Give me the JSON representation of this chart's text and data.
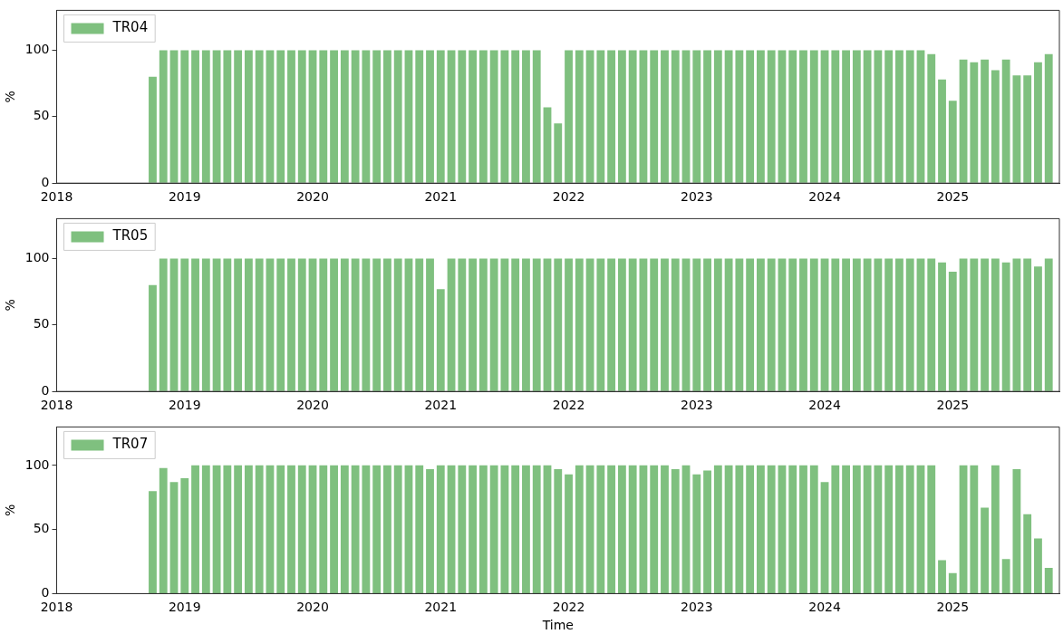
{
  "chart_data": [
    {
      "type": "bar",
      "ylabel": "%",
      "legend": "top left",
      "xlim": [
        "2018-01",
        "2025-11"
      ],
      "xticks": [
        "2018",
        "2019",
        "2020",
        "2021",
        "2022",
        "2023",
        "2024",
        "2025"
      ],
      "ylim": [
        0,
        130
      ],
      "yticks": [
        0,
        50,
        100
      ],
      "x": [
        "2018-10",
        "2018-11",
        "2018-12",
        "2019-01",
        "2019-02",
        "2019-03",
        "2019-04",
        "2019-05",
        "2019-06",
        "2019-07",
        "2019-08",
        "2019-09",
        "2019-10",
        "2019-11",
        "2019-12",
        "2020-01",
        "2020-02",
        "2020-03",
        "2020-04",
        "2020-05",
        "2020-06",
        "2020-07",
        "2020-08",
        "2020-09",
        "2020-10",
        "2020-11",
        "2020-12",
        "2021-01",
        "2021-02",
        "2021-03",
        "2021-04",
        "2021-05",
        "2021-06",
        "2021-07",
        "2021-08",
        "2021-09",
        "2021-10",
        "2021-11",
        "2021-12",
        "2022-01",
        "2022-02",
        "2022-03",
        "2022-04",
        "2022-05",
        "2022-06",
        "2022-07",
        "2022-08",
        "2022-09",
        "2022-10",
        "2022-11",
        "2022-12",
        "2023-01",
        "2023-02",
        "2023-03",
        "2023-04",
        "2023-05",
        "2023-06",
        "2023-07",
        "2023-08",
        "2023-09",
        "2023-10",
        "2023-11",
        "2023-12",
        "2024-01",
        "2024-02",
        "2024-03",
        "2024-04",
        "2024-05",
        "2024-06",
        "2024-07",
        "2024-08",
        "2024-09",
        "2024-10",
        "2024-11",
        "2024-12",
        "2025-01",
        "2025-02",
        "2025-03",
        "2025-04",
        "2025-05",
        "2025-06",
        "2025-07",
        "2025-08",
        "2025-09",
        "2025-10"
      ],
      "series": [
        {
          "name": "TR04",
          "color": "#7fc07f",
          "values": [
            80,
            100,
            100,
            100,
            100,
            100,
            100,
            100,
            100,
            100,
            100,
            100,
            100,
            100,
            100,
            100,
            100,
            100,
            100,
            100,
            100,
            100,
            100,
            100,
            100,
            100,
            100,
            100,
            100,
            100,
            100,
            100,
            100,
            100,
            100,
            100,
            100,
            57,
            45,
            100,
            100,
            100,
            100,
            100,
            100,
            100,
            100,
            100,
            100,
            100,
            100,
            100,
            100,
            100,
            100,
            100,
            100,
            100,
            100,
            100,
            100,
            100,
            100,
            100,
            100,
            100,
            100,
            100,
            100,
            100,
            100,
            100,
            100,
            97,
            78,
            62,
            93,
            91,
            93,
            85,
            93,
            81,
            81,
            91,
            97
          ]
        }
      ]
    },
    {
      "type": "bar",
      "ylabel": "%",
      "legend": "top left",
      "xlim": [
        "2018-01",
        "2025-11"
      ],
      "xticks": [
        "2018",
        "2019",
        "2020",
        "2021",
        "2022",
        "2023",
        "2024",
        "2025"
      ],
      "ylim": [
        0,
        130
      ],
      "yticks": [
        0,
        50,
        100
      ],
      "x": [
        "2018-10",
        "2018-11",
        "2018-12",
        "2019-01",
        "2019-02",
        "2019-03",
        "2019-04",
        "2019-05",
        "2019-06",
        "2019-07",
        "2019-08",
        "2019-09",
        "2019-10",
        "2019-11",
        "2019-12",
        "2020-01",
        "2020-02",
        "2020-03",
        "2020-04",
        "2020-05",
        "2020-06",
        "2020-07",
        "2020-08",
        "2020-09",
        "2020-10",
        "2020-11",
        "2020-12",
        "2021-01",
        "2021-02",
        "2021-03",
        "2021-04",
        "2021-05",
        "2021-06",
        "2021-07",
        "2021-08",
        "2021-09",
        "2021-10",
        "2021-11",
        "2021-12",
        "2022-01",
        "2022-02",
        "2022-03",
        "2022-04",
        "2022-05",
        "2022-06",
        "2022-07",
        "2022-08",
        "2022-09",
        "2022-10",
        "2022-11",
        "2022-12",
        "2023-01",
        "2023-02",
        "2023-03",
        "2023-04",
        "2023-05",
        "2023-06",
        "2023-07",
        "2023-08",
        "2023-09",
        "2023-10",
        "2023-11",
        "2023-12",
        "2024-01",
        "2024-02",
        "2024-03",
        "2024-04",
        "2024-05",
        "2024-06",
        "2024-07",
        "2024-08",
        "2024-09",
        "2024-10",
        "2024-11",
        "2024-12",
        "2025-01",
        "2025-02",
        "2025-03",
        "2025-04",
        "2025-05",
        "2025-06",
        "2025-07",
        "2025-08",
        "2025-09",
        "2025-10"
      ],
      "series": [
        {
          "name": "TR05",
          "color": "#7fc07f",
          "values": [
            80,
            100,
            100,
            100,
            100,
            100,
            100,
            100,
            100,
            100,
            100,
            100,
            100,
            100,
            100,
            100,
            100,
            100,
            100,
            100,
            100,
            100,
            100,
            100,
            100,
            100,
            100,
            77,
            100,
            100,
            100,
            100,
            100,
            100,
            100,
            100,
            100,
            100,
            100,
            100,
            100,
            100,
            100,
            100,
            100,
            100,
            100,
            100,
            100,
            100,
            100,
            100,
            100,
            100,
            100,
            100,
            100,
            100,
            100,
            100,
            100,
            100,
            100,
            100,
            100,
            100,
            100,
            100,
            100,
            100,
            100,
            100,
            100,
            100,
            97,
            90,
            100,
            100,
            100,
            100,
            97,
            100,
            100,
            94,
            100
          ]
        }
      ]
    },
    {
      "type": "bar",
      "ylabel": "%",
      "xlabel": "Time",
      "legend": "top left",
      "xlim": [
        "2018-01",
        "2025-11"
      ],
      "xticks": [
        "2018",
        "2019",
        "2020",
        "2021",
        "2022",
        "2023",
        "2024",
        "2025"
      ],
      "ylim": [
        0,
        130
      ],
      "yticks": [
        0,
        50,
        100
      ],
      "x": [
        "2018-10",
        "2018-11",
        "2018-12",
        "2019-01",
        "2019-02",
        "2019-03",
        "2019-04",
        "2019-05",
        "2019-06",
        "2019-07",
        "2019-08",
        "2019-09",
        "2019-10",
        "2019-11",
        "2019-12",
        "2020-01",
        "2020-02",
        "2020-03",
        "2020-04",
        "2020-05",
        "2020-06",
        "2020-07",
        "2020-08",
        "2020-09",
        "2020-10",
        "2020-11",
        "2020-12",
        "2021-01",
        "2021-02",
        "2021-03",
        "2021-04",
        "2021-05",
        "2021-06",
        "2021-07",
        "2021-08",
        "2021-09",
        "2021-10",
        "2021-11",
        "2021-12",
        "2022-01",
        "2022-02",
        "2022-03",
        "2022-04",
        "2022-05",
        "2022-06",
        "2022-07",
        "2022-08",
        "2022-09",
        "2022-10",
        "2022-11",
        "2022-12",
        "2023-01",
        "2023-02",
        "2023-03",
        "2023-04",
        "2023-05",
        "2023-06",
        "2023-07",
        "2023-08",
        "2023-09",
        "2023-10",
        "2023-11",
        "2023-12",
        "2024-01",
        "2024-02",
        "2024-03",
        "2024-04",
        "2024-05",
        "2024-06",
        "2024-07",
        "2024-08",
        "2024-09",
        "2024-10",
        "2024-11",
        "2024-12",
        "2025-01",
        "2025-02",
        "2025-03",
        "2025-04",
        "2025-05",
        "2025-06",
        "2025-07",
        "2025-08",
        "2025-09",
        "2025-10"
      ],
      "series": [
        {
          "name": "TR07",
          "color": "#7fc07f",
          "values": [
            80,
            98,
            87,
            90,
            100,
            100,
            100,
            100,
            100,
            100,
            100,
            100,
            100,
            100,
            100,
            100,
            100,
            100,
            100,
            100,
            100,
            100,
            100,
            100,
            100,
            100,
            97,
            100,
            100,
            100,
            100,
            100,
            100,
            100,
            100,
            100,
            100,
            100,
            97,
            93,
            100,
            100,
            100,
            100,
            100,
            100,
            100,
            100,
            100,
            97,
            100,
            93,
            96,
            100,
            100,
            100,
            100,
            100,
            100,
            100,
            100,
            100,
            100,
            87,
            100,
            100,
            100,
            100,
            100,
            100,
            100,
            100,
            100,
            100,
            26,
            16,
            100,
            100,
            67,
            100,
            27,
            97,
            62,
            43,
            20
          ]
        }
      ]
    }
  ]
}
